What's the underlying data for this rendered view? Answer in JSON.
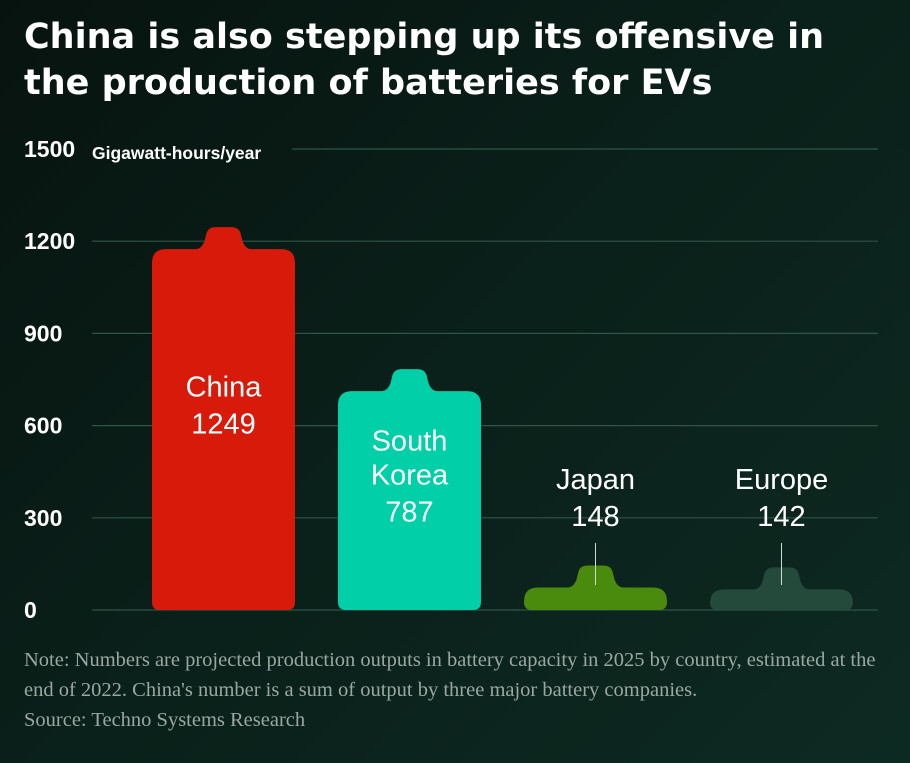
{
  "header": {
    "title": "China is also stepping up its offensive in the production of batteries for EVs"
  },
  "chart_data": {
    "type": "bar",
    "title": "China is also stepping up its offensive in the production of batteries for EVs",
    "ylabel": "Gigawatt-hours/year",
    "ylim": [
      0,
      1500
    ],
    "yticks": [
      0,
      300,
      600,
      900,
      1200,
      1500
    ],
    "categories": [
      "China",
      "South Korea",
      "Japan",
      "Europe"
    ],
    "label_lines": [
      [
        "China"
      ],
      [
        "South",
        "Korea"
      ],
      [
        "Japan"
      ],
      [
        "Europe"
      ]
    ],
    "values": [
      1249,
      787,
      148,
      142
    ],
    "colors": [
      "#d81a0b",
      "#00cfa7",
      "#4a8a0c",
      "#244a3c"
    ],
    "grid": true
  },
  "footer": {
    "note": "Note: Numbers are projected production outputs in battery capacity in 2025 by country, estimated at the end of 2022. China's number is a sum of output by three major battery companies.",
    "source": "Source: Techno Systems Research"
  }
}
